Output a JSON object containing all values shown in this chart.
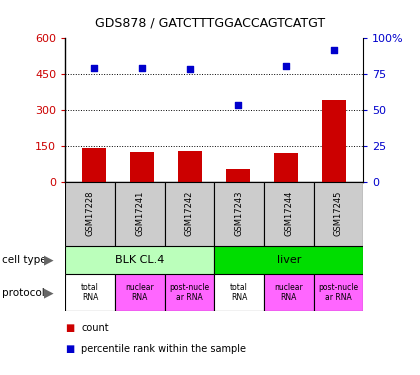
{
  "title": "GDS878 / GATCTTTGGACCAGTCATGT",
  "samples": [
    "GSM17228",
    "GSM17241",
    "GSM17242",
    "GSM17243",
    "GSM17244",
    "GSM17245"
  ],
  "counts": [
    140,
    125,
    128,
    55,
    122,
    340
  ],
  "percentiles": [
    79,
    79,
    78,
    53,
    80,
    91
  ],
  "ylim_left": [
    0,
    600
  ],
  "ylim_right": [
    0,
    100
  ],
  "yticks_left": [
    0,
    150,
    300,
    450,
    600
  ],
  "yticks_right": [
    0,
    25,
    50,
    75,
    100
  ],
  "ytick_right_labels": [
    "0",
    "25",
    "50",
    "75",
    "100%"
  ],
  "bar_color": "#cc0000",
  "dot_color": "#0000cc",
  "cell_types": [
    {
      "label": "BLK CL.4",
      "span": [
        0,
        3
      ],
      "color": "#bbffbb"
    },
    {
      "label": "liver",
      "span": [
        3,
        6
      ],
      "color": "#00dd00"
    }
  ],
  "proto_labels": [
    "total\nRNA",
    "nuclear\nRNA",
    "post-nucle\nar RNA",
    "total\nRNA",
    "nuclear\nRNA",
    "post-nucle\nar RNA"
  ],
  "proto_colors": [
    "#ffffff",
    "#ff66ff",
    "#ff66ff",
    "#ffffff",
    "#ff66ff",
    "#ff66ff"
  ],
  "sample_bg": "#cccccc",
  "legend_items": [
    {
      "color": "#cc0000",
      "label": "count"
    },
    {
      "color": "#0000cc",
      "label": "percentile rank within the sample"
    }
  ]
}
